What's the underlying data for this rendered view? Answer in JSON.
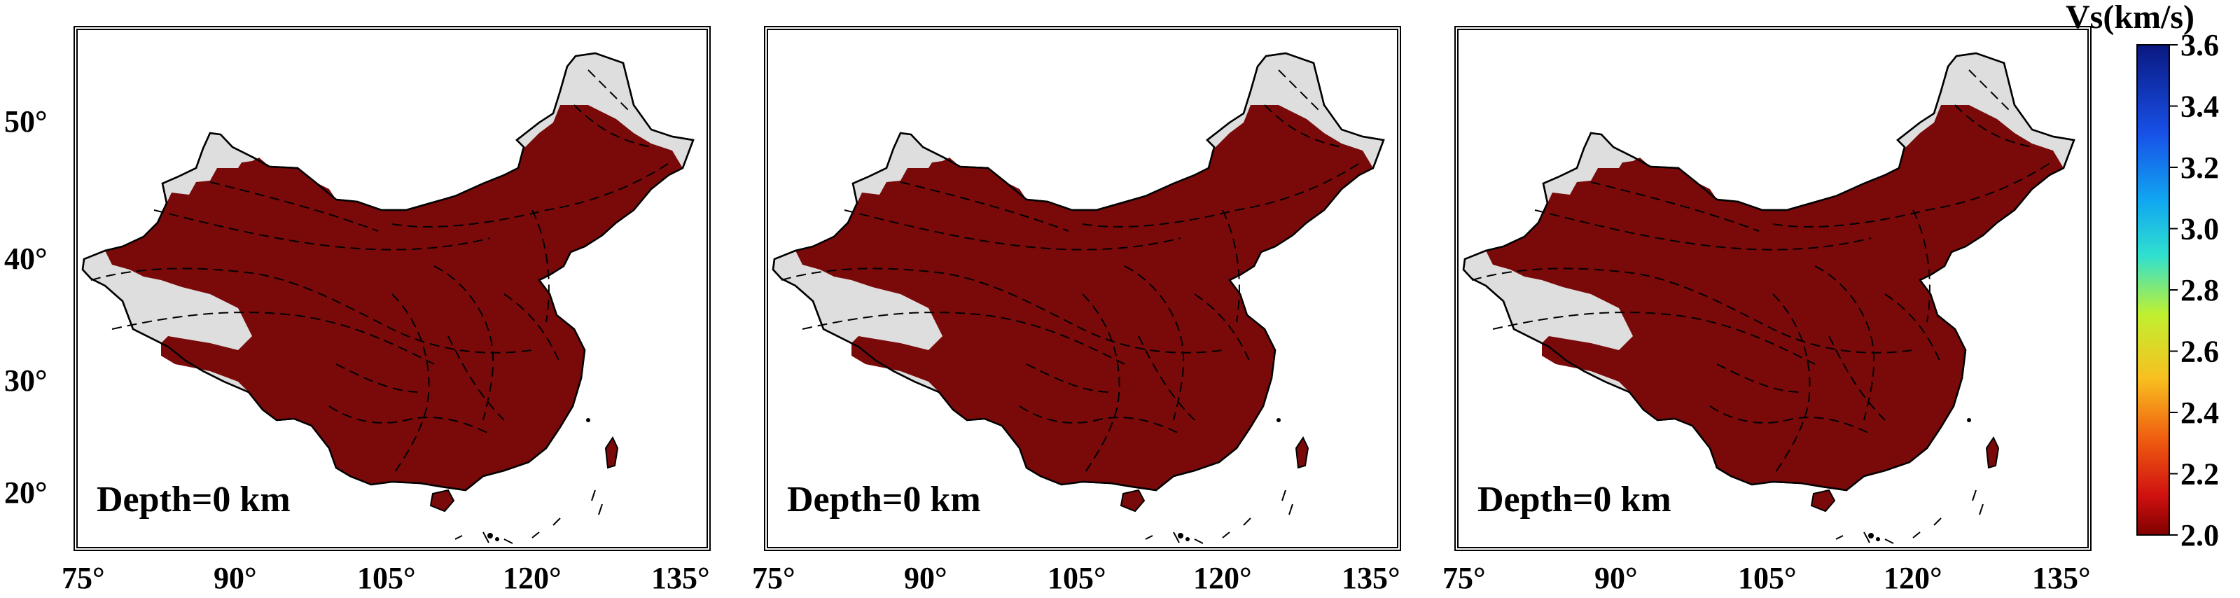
{
  "panels": [
    {
      "depth_label": "Depth=0 km"
    },
    {
      "depth_label": "Depth=0 km"
    },
    {
      "depth_label": "Depth=0 km"
    }
  ],
  "axes": {
    "lon_ticks": [
      "75°",
      "90°",
      "105°",
      "120°",
      "135°"
    ],
    "lat_ticks": [
      "50°",
      "40°",
      "30°",
      "20°"
    ]
  },
  "colorbar": {
    "title": "Vs(km/s)",
    "ticks": [
      "3.6",
      "3.4",
      "3.2",
      "3.0",
      "2.8",
      "2.6",
      "2.4",
      "2.2",
      "2.0"
    ],
    "colors": [
      "#0b1a8c",
      "#1648e0",
      "#1ea0f0",
      "#22e0e0",
      "#60f080",
      "#d8f020",
      "#f8a010",
      "#f02010",
      "#800000"
    ]
  },
  "colors": {
    "fill": "#7a0a0a",
    "land": "#dedede"
  }
}
